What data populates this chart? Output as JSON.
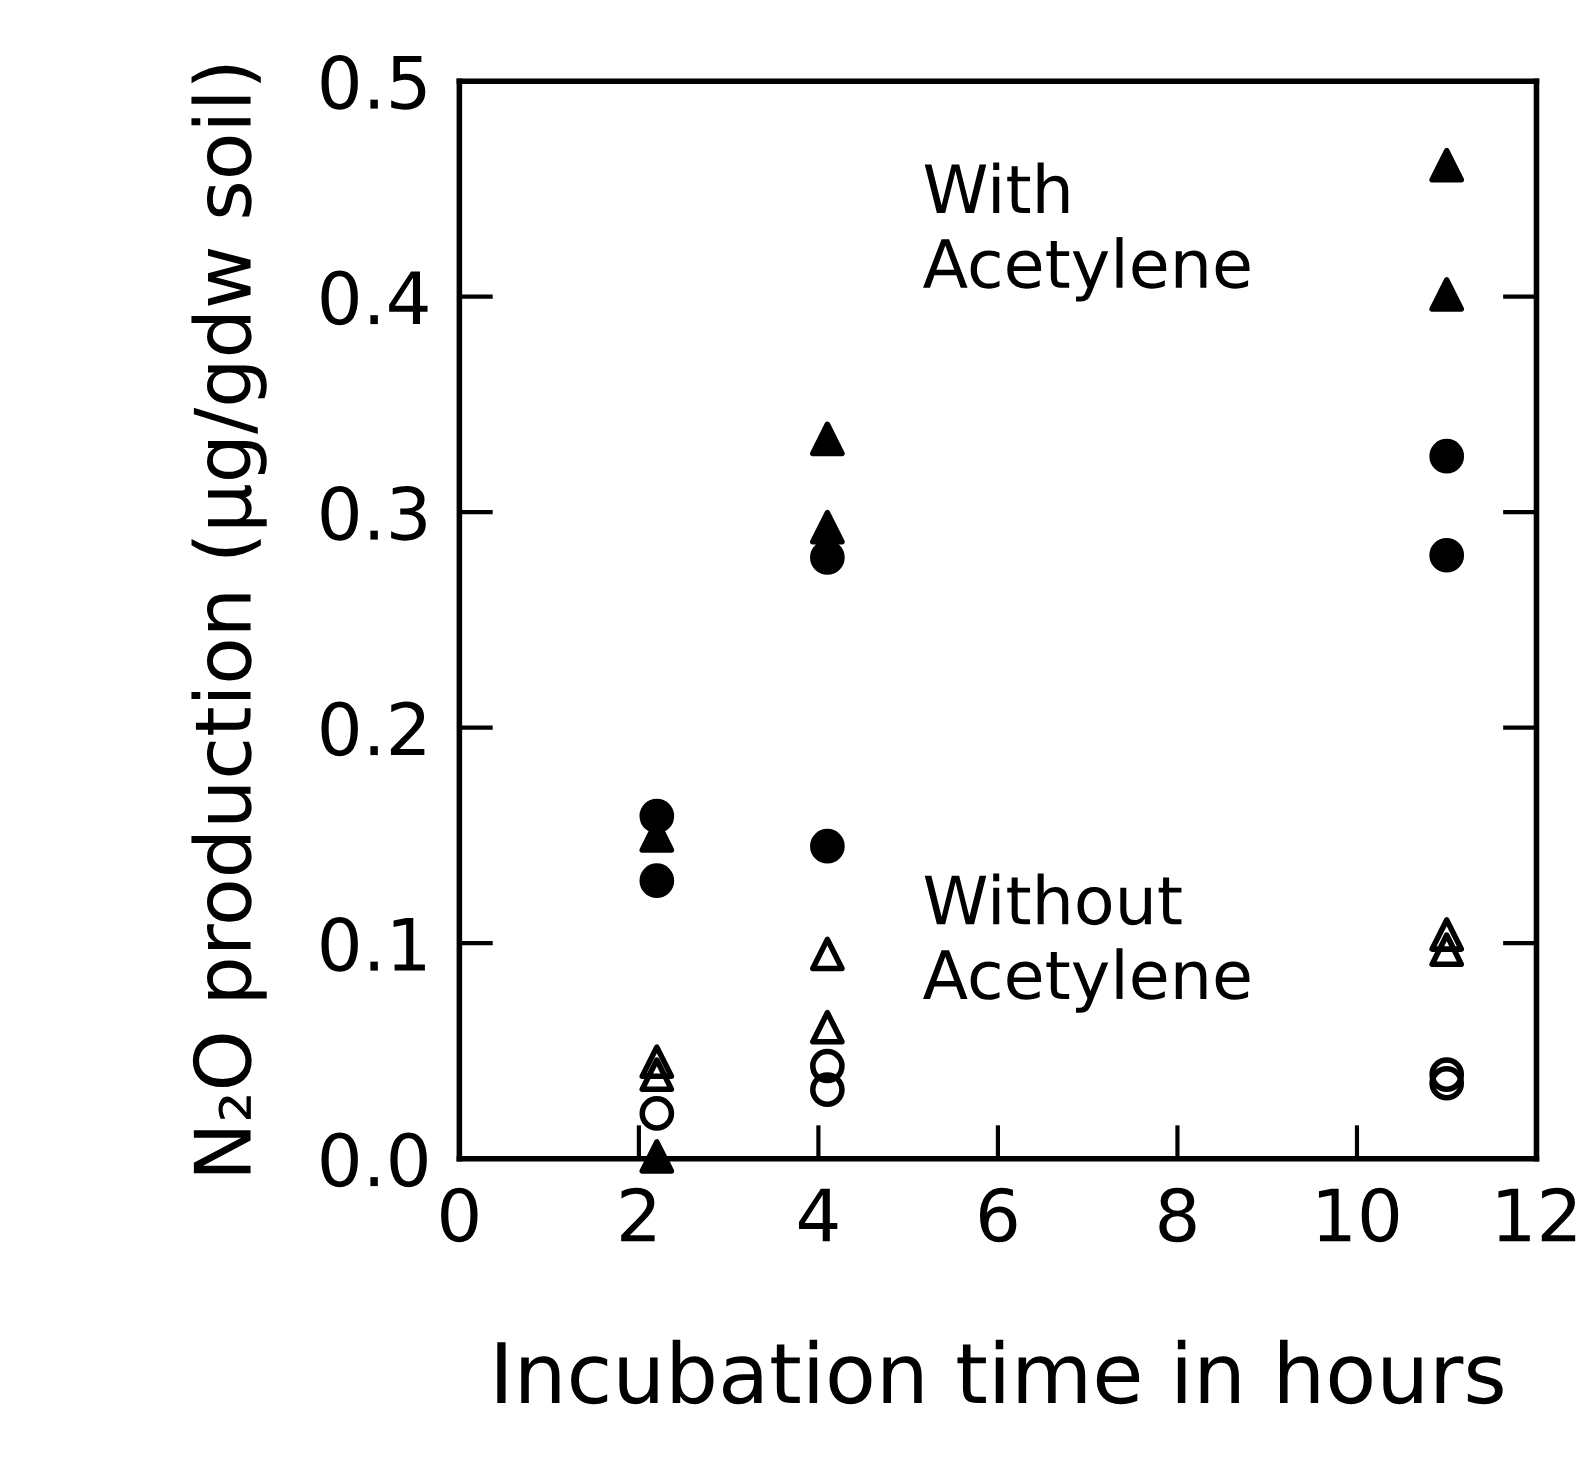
{
  "chart_data": {
    "type": "scatter",
    "xlabel": "Incubation time in hours",
    "ylabel": "N₂O production (μg/gdw soil)",
    "xlim": [
      0,
      12
    ],
    "xticks": [
      0,
      2,
      4,
      6,
      8,
      10,
      12
    ],
    "ylim": [
      0,
      0.5
    ],
    "yticks": [
      {
        "value": 0,
        "label": "0.0"
      },
      0.1,
      0.2,
      0.3,
      0.4,
      0.5
    ],
    "grid": false,
    "series": [
      {
        "color": "#000000",
        "marker": "triangle",
        "x": [
          2.2,
          2.2,
          4.1,
          4.1,
          11.0,
          11.0
        ],
        "values": [
          0.15,
          0.001,
          0.334,
          0.293,
          0.461,
          0.401
        ]
      },
      {
        "color": "#000000",
        "marker": "circle",
        "x": [
          2.2,
          2.2,
          4.1,
          4.1,
          11.0,
          11.0
        ],
        "values": [
          0.159,
          0.129,
          0.279,
          0.145,
          0.326,
          0.28
        ]
      },
      {
        "color": "#000000",
        "marker": "triangle",
        "x": [
          2.2,
          2.2,
          4.1,
          4.1,
          11.0,
          11.0
        ],
        "values": [
          0.045,
          0.039,
          0.095,
          0.061,
          0.104,
          0.097
        ]
      },
      {
        "color": "#000000",
        "marker": "circle",
        "x": [
          2.2,
          4.1,
          4.1,
          11.0,
          11.0
        ],
        "values": [
          0.021,
          0.043,
          0.032,
          0.039,
          0.035
        ]
      }
    ],
    "annotations": [
      "With\nAcetylene",
      "Without\nAcetylene"
    ]
  }
}
